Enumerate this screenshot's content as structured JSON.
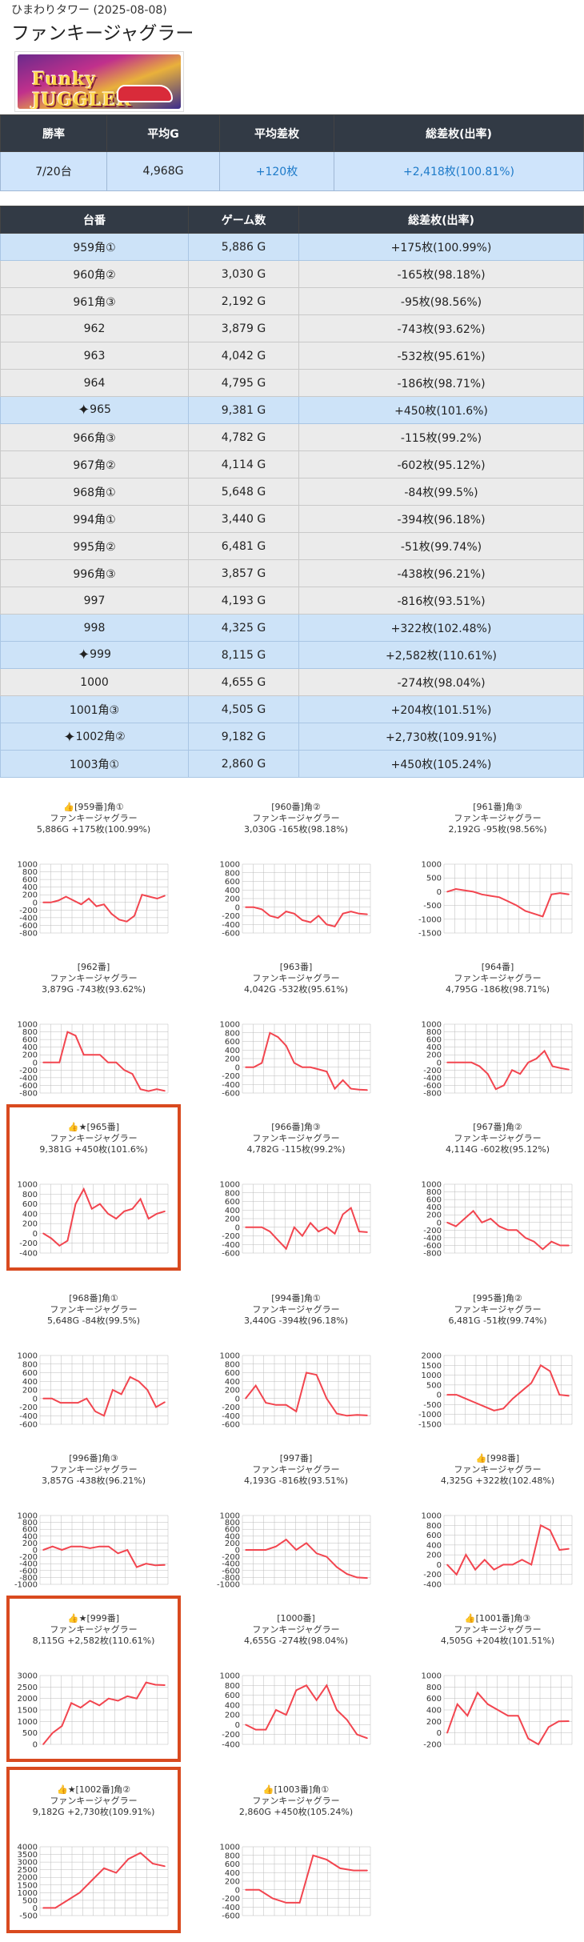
{
  "header": {
    "store": "ひまわりタワー (2025-08-08)",
    "title": "ファンキージャグラー",
    "banner_text": "Funky JUGGLER"
  },
  "summary": {
    "headers": [
      "勝率",
      "平均G",
      "平均差枚",
      "総差枚(出率)"
    ],
    "values": [
      "7/20台",
      "4,968G",
      "+120枚",
      "+2,418枚(100.81%)"
    ]
  },
  "machines": {
    "headers": [
      "台番",
      "ゲーム数",
      "総差枚(出率)"
    ],
    "rows": [
      {
        "no": "959角①",
        "games": "5,886 G",
        "diff": "+175枚(100.99%)",
        "pos": true,
        "star": false
      },
      {
        "no": "960角②",
        "games": "3,030 G",
        "diff": "-165枚(98.18%)",
        "pos": false,
        "star": false
      },
      {
        "no": "961角③",
        "games": "2,192 G",
        "diff": "-95枚(98.56%)",
        "pos": false,
        "star": false
      },
      {
        "no": "962",
        "games": "3,879 G",
        "diff": "-743枚(93.62%)",
        "pos": false,
        "star": false
      },
      {
        "no": "963",
        "games": "4,042 G",
        "diff": "-532枚(95.61%)",
        "pos": false,
        "star": false
      },
      {
        "no": "964",
        "games": "4,795 G",
        "diff": "-186枚(98.71%)",
        "pos": false,
        "star": false
      },
      {
        "no": "965",
        "games": "9,381 G",
        "diff": "+450枚(101.6%)",
        "pos": true,
        "star": true
      },
      {
        "no": "966角③",
        "games": "4,782 G",
        "diff": "-115枚(99.2%)",
        "pos": false,
        "star": false
      },
      {
        "no": "967角②",
        "games": "4,114 G",
        "diff": "-602枚(95.12%)",
        "pos": false,
        "star": false
      },
      {
        "no": "968角①",
        "games": "5,648 G",
        "diff": "-84枚(99.5%)",
        "pos": false,
        "star": false
      },
      {
        "no": "994角①",
        "games": "3,440 G",
        "diff": "-394枚(96.18%)",
        "pos": false,
        "star": false
      },
      {
        "no": "995角②",
        "games": "6,481 G",
        "diff": "-51枚(99.74%)",
        "pos": false,
        "star": false
      },
      {
        "no": "996角③",
        "games": "3,857 G",
        "diff": "-438枚(96.21%)",
        "pos": false,
        "star": false
      },
      {
        "no": "997",
        "games": "4,193 G",
        "diff": "-816枚(93.51%)",
        "pos": false,
        "star": false
      },
      {
        "no": "998",
        "games": "4,325 G",
        "diff": "+322枚(102.48%)",
        "pos": true,
        "star": false
      },
      {
        "no": "999",
        "games": "8,115 G",
        "diff": "+2,582枚(110.61%)",
        "pos": true,
        "star": true
      },
      {
        "no": "1000",
        "games": "4,655 G",
        "diff": "-274枚(98.04%)",
        "pos": false,
        "star": false
      },
      {
        "no": "1001角③",
        "games": "4,505 G",
        "diff": "+204枚(101.51%)",
        "pos": true,
        "star": false
      },
      {
        "no": "1002角②",
        "games": "9,182 G",
        "diff": "+2,730枚(109.91%)",
        "pos": true,
        "star": true
      },
      {
        "no": "1003角①",
        "games": "2,860 G",
        "diff": "+450枚(105.24%)",
        "pos": true,
        "star": false
      }
    ]
  },
  "charts": {
    "line_color": "#f2454f",
    "grid_color": "#bbbbbb",
    "items": [
      {
        "title": "👍[959番]角①",
        "model": "ファンキージャグラー",
        "stats": "5,886G +175枚(100.99%)",
        "boxed": false,
        "chart_data": {
          "type": "line",
          "y_ticks": [
            1000,
            600,
            200,
            -200,
            -600
          ],
          "y_tick_labels": [
            "1000",
            "800",
            "600",
            "400",
            "200",
            "0",
            "-200",
            "-400",
            "-600",
            "-800"
          ],
          "ylim": [
            -800,
            1000
          ],
          "values": [
            0,
            0,
            50,
            150,
            50,
            -50,
            100,
            -100,
            -50,
            -300,
            -450,
            -500,
            -350,
            200,
            150,
            100,
            175
          ]
        }
      },
      {
        "title": "[960番]角②",
        "model": "ファンキージャグラー",
        "stats": "3,030G -165枚(98.18%)",
        "boxed": false,
        "chart_data": {
          "type": "line",
          "y_tick_labels": [
            "1000",
            "800",
            "600",
            "400",
            "200",
            "0",
            "-200",
            "-400",
            "-600"
          ],
          "ylim": [
            -600,
            1000
          ],
          "values": [
            0,
            0,
            -50,
            -200,
            -250,
            -100,
            -150,
            -300,
            -350,
            -200,
            -400,
            -450,
            -150,
            -100,
            -150,
            -165
          ]
        }
      },
      {
        "title": "[961番]角③",
        "model": "ファンキージャグラー",
        "stats": "2,192G -95枚(98.56%)",
        "boxed": false,
        "chart_data": {
          "type": "line",
          "y_tick_labels": [
            "1000",
            "500",
            "0",
            "-500",
            "-1000",
            "-1500"
          ],
          "ylim": [
            -1500,
            1000
          ],
          "values": [
            0,
            100,
            50,
            0,
            -100,
            -150,
            -200,
            -350,
            -500,
            -700,
            -800,
            -900,
            -100,
            -50,
            -95
          ]
        }
      },
      {
        "title": "[962番]",
        "model": "ファンキージャグラー",
        "stats": "3,879G -743枚(93.62%)",
        "boxed": false,
        "chart_data": {
          "type": "line",
          "y_tick_labels": [
            "1000",
            "800",
            "600",
            "400",
            "200",
            "0",
            "-200",
            "-400",
            "-600",
            "-800"
          ],
          "ylim": [
            -800,
            1000
          ],
          "values": [
            0,
            0,
            0,
            800,
            700,
            200,
            200,
            200,
            0,
            0,
            -200,
            -300,
            -700,
            -750,
            -700,
            -743
          ]
        }
      },
      {
        "title": "[963番]",
        "model": "ファンキージャグラー",
        "stats": "4,042G -532枚(95.61%)",
        "boxed": false,
        "chart_data": {
          "type": "line",
          "y_tick_labels": [
            "1000",
            "800",
            "600",
            "400",
            "200",
            "0",
            "-200",
            "-400",
            "-600"
          ],
          "ylim": [
            -600,
            1000
          ],
          "values": [
            0,
            0,
            100,
            800,
            700,
            500,
            100,
            0,
            0,
            -50,
            -100,
            -500,
            -300,
            -500,
            -520,
            -532
          ]
        }
      },
      {
        "title": "[964番]",
        "model": "ファンキージャグラー",
        "stats": "4,795G -186枚(98.71%)",
        "boxed": false,
        "chart_data": {
          "type": "line",
          "y_tick_labels": [
            "1000",
            "800",
            "600",
            "400",
            "200",
            "0",
            "-200",
            "-400",
            "-600",
            "-800"
          ],
          "ylim": [
            -800,
            1000
          ],
          "values": [
            0,
            0,
            0,
            0,
            -100,
            -300,
            -700,
            -600,
            -200,
            -300,
            0,
            100,
            300,
            -100,
            -150,
            -186
          ]
        }
      },
      {
        "title": "👍★[965番]",
        "model": "ファンキージャグラー",
        "stats": "9,381G +450枚(101.6%)",
        "boxed": true,
        "chart_data": {
          "type": "line",
          "y_tick_labels": [
            "1000",
            "800",
            "600",
            "400",
            "200",
            "0",
            "-200",
            "-400"
          ],
          "ylim": [
            -400,
            1000
          ],
          "values": [
            0,
            -100,
            -250,
            -150,
            600,
            900,
            500,
            600,
            400,
            300,
            450,
            500,
            700,
            300,
            400,
            450
          ]
        }
      },
      {
        "title": "[966番]角③",
        "model": "ファンキージャグラー",
        "stats": "4,782G -115枚(99.2%)",
        "boxed": false,
        "chart_data": {
          "type": "line",
          "y_tick_labels": [
            "1000",
            "800",
            "600",
            "400",
            "200",
            "0",
            "-200",
            "-400",
            "-600"
          ],
          "ylim": [
            -600,
            1000
          ],
          "values": [
            0,
            0,
            0,
            -100,
            -300,
            -500,
            0,
            -200,
            100,
            -100,
            0,
            -150,
            300,
            450,
            -100,
            -115
          ]
        }
      },
      {
        "title": "[967番]角②",
        "model": "ファンキージャグラー",
        "stats": "4,114G -602枚(95.12%)",
        "boxed": false,
        "chart_data": {
          "type": "line",
          "y_tick_labels": [
            "1000",
            "800",
            "600",
            "400",
            "200",
            "0",
            "-200",
            "-400",
            "-600",
            "-800"
          ],
          "ylim": [
            -800,
            1000
          ],
          "values": [
            0,
            -100,
            100,
            300,
            0,
            100,
            -100,
            -200,
            -200,
            -400,
            -500,
            -700,
            -500,
            -600,
            -602
          ]
        }
      },
      {
        "title": "[968番]角①",
        "model": "ファンキージャグラー",
        "stats": "5,648G -84枚(99.5%)",
        "boxed": false,
        "chart_data": {
          "type": "line",
          "y_tick_labels": [
            "1000",
            "800",
            "600",
            "400",
            "200",
            "0",
            "-200",
            "-400",
            "-600"
          ],
          "ylim": [
            -600,
            1000
          ],
          "values": [
            0,
            0,
            -100,
            -100,
            -100,
            0,
            -300,
            -400,
            200,
            100,
            500,
            400,
            200,
            -200,
            -84
          ]
        }
      },
      {
        "title": "[994番]角①",
        "model": "ファンキージャグラー",
        "stats": "3,440G -394枚(96.18%)",
        "boxed": false,
        "chart_data": {
          "type": "line",
          "y_tick_labels": [
            "1000",
            "800",
            "600",
            "400",
            "200",
            "0",
            "-200",
            "-400",
            "-600"
          ],
          "ylim": [
            -600,
            1000
          ],
          "values": [
            0,
            300,
            -100,
            -150,
            -150,
            -300,
            600,
            550,
            0,
            -350,
            -400,
            -380,
            -394
          ]
        }
      },
      {
        "title": "[995番]角②",
        "model": "ファンキージャグラー",
        "stats": "6,481G -51枚(99.74%)",
        "boxed": false,
        "chart_data": {
          "type": "line",
          "y_tick_labels": [
            "2000",
            "1500",
            "1000",
            "500",
            "0",
            "-500",
            "-1000",
            "-1500"
          ],
          "ylim": [
            -1500,
            2000
          ],
          "values": [
            0,
            0,
            -200,
            -400,
            -600,
            -800,
            -700,
            -200,
            200,
            600,
            1500,
            1200,
            0,
            -51
          ]
        }
      },
      {
        "title": "[996番]角③",
        "model": "ファンキージャグラー",
        "stats": "3,857G -438枚(96.21%)",
        "boxed": false,
        "chart_data": {
          "type": "line",
          "y_tick_labels": [
            "1000",
            "800",
            "600",
            "400",
            "200",
            "0",
            "-200",
            "-400",
            "-600",
            "-800",
            "-1000"
          ],
          "ylim": [
            -1000,
            1000
          ],
          "values": [
            0,
            100,
            0,
            100,
            100,
            50,
            100,
            100,
            -100,
            0,
            -500,
            -400,
            -450,
            -438
          ]
        }
      },
      {
        "title": "[997番]",
        "model": "ファンキージャグラー",
        "stats": "4,193G -816枚(93.51%)",
        "boxed": false,
        "chart_data": {
          "type": "line",
          "y_tick_labels": [
            "1000",
            "800",
            "600",
            "400",
            "200",
            "0",
            "-200",
            "-400",
            "-600",
            "-800",
            "-1000"
          ],
          "ylim": [
            -1000,
            1000
          ],
          "values": [
            0,
            0,
            0,
            100,
            300,
            0,
            200,
            -100,
            -200,
            -500,
            -700,
            -800,
            -816
          ]
        }
      },
      {
        "title": "👍[998番]",
        "model": "ファンキージャグラー",
        "stats": "4,325G +322枚(102.48%)",
        "boxed": false,
        "chart_data": {
          "type": "line",
          "y_tick_labels": [
            "1000",
            "800",
            "600",
            "400",
            "200",
            "0",
            "-200",
            "-400"
          ],
          "ylim": [
            -400,
            1000
          ],
          "values": [
            0,
            -200,
            200,
            -100,
            100,
            -100,
            0,
            0,
            100,
            0,
            800,
            700,
            300,
            322
          ]
        }
      },
      {
        "title": "👍★[999番]",
        "model": "ファンキージャグラー",
        "stats": "8,115G +2,582枚(110.61%)",
        "boxed": true,
        "chart_data": {
          "type": "line",
          "y_tick_labels": [
            "3000",
            "2500",
            "2000",
            "1500",
            "1000",
            "500",
            "0"
          ],
          "ylim": [
            0,
            3000
          ],
          "values": [
            0,
            500,
            800,
            1800,
            1600,
            1900,
            1700,
            2000,
            1900,
            2100,
            2000,
            2700,
            2600,
            2582
          ]
        }
      },
      {
        "title": "[1000番]",
        "model": "ファンキージャグラー",
        "stats": "4,655G -274枚(98.04%)",
        "boxed": false,
        "chart_data": {
          "type": "line",
          "y_tick_labels": [
            "1000",
            "800",
            "600",
            "400",
            "200",
            "0",
            "-200",
            "-400"
          ],
          "ylim": [
            -400,
            1000
          ],
          "values": [
            0,
            -100,
            -100,
            300,
            200,
            700,
            800,
            500,
            800,
            300,
            100,
            -200,
            -274
          ]
        }
      },
      {
        "title": "👍[1001番]角③",
        "model": "ファンキージャグラー",
        "stats": "4,505G +204枚(101.51%)",
        "boxed": false,
        "chart_data": {
          "type": "line",
          "y_tick_labels": [
            "1000",
            "800",
            "600",
            "400",
            "200",
            "0",
            "-200"
          ],
          "ylim": [
            -200,
            1000
          ],
          "values": [
            0,
            500,
            300,
            700,
            500,
            400,
            300,
            300,
            -100,
            -200,
            100,
            200,
            204
          ]
        }
      },
      {
        "title": "👍★[1002番]角②",
        "model": "ファンキージャグラー",
        "stats": "9,182G +2,730枚(109.91%)",
        "boxed": true,
        "chart_data": {
          "type": "line",
          "y_tick_labels": [
            "4000",
            "3500",
            "3000",
            "2500",
            "2000",
            "1500",
            "1000",
            "500",
            "0",
            "-500"
          ],
          "ylim": [
            -500,
            4000
          ],
          "values": [
            0,
            0,
            500,
            1000,
            1800,
            2600,
            2300,
            3200,
            3600,
            2900,
            2730
          ]
        }
      },
      {
        "title": "👍[1003番]角①",
        "model": "ファンキージャグラー",
        "stats": "2,860G +450枚(105.24%)",
        "boxed": false,
        "chart_data": {
          "type": "line",
          "y_tick_labels": [
            "1000",
            "800",
            "600",
            "400",
            "200",
            "0",
            "-200",
            "-400",
            "-600"
          ],
          "ylim": [
            -600,
            1000
          ],
          "values": [
            0,
            0,
            -200,
            -300,
            -300,
            800,
            700,
            500,
            450,
            450
          ]
        }
      }
    ]
  }
}
